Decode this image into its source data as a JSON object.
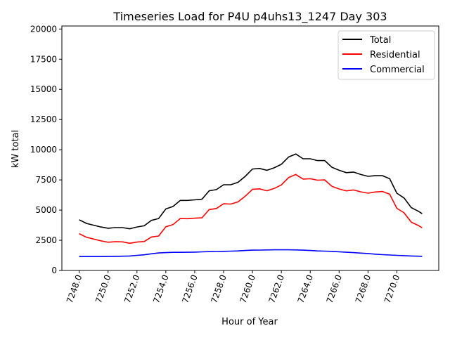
{
  "chart_data": {
    "type": "line",
    "title": "Timeseries Load for P4U p4uhs13_1247  Day 303",
    "xlabel": "Hour of Year",
    "ylabel": "kW total",
    "xlim": [
      7246.8,
      7272.9
    ],
    "ylim": [
      0,
      20250
    ],
    "x_ticks": [
      7248,
      7250,
      7252,
      7254,
      7256,
      7258,
      7260,
      7262,
      7264,
      7266,
      7268,
      7270
    ],
    "x_tick_labels": [
      "7248.0",
      "7250.0",
      "7252.0",
      "7254.0",
      "7256.0",
      "7258.0",
      "7260.0",
      "7262.0",
      "7264.0",
      "7266.0",
      "7268.0",
      "7270.0"
    ],
    "y_ticks": [
      0,
      2500,
      5000,
      7500,
      10000,
      12500,
      15000,
      17500,
      20000
    ],
    "y_tick_labels": [
      "0",
      "2500",
      "5000",
      "7500",
      "10000",
      "12500",
      "15000",
      "17500",
      "20000"
    ],
    "grid": false,
    "legend_position": "top-right",
    "x": [
      7248,
      7248.5,
      7249,
      7249.5,
      7250,
      7250.5,
      7251,
      7251.5,
      7252,
      7252.5,
      7253,
      7253.5,
      7254,
      7254.5,
      7255,
      7255.5,
      7256,
      7256.5,
      7257,
      7257.5,
      7258,
      7258.5,
      7259,
      7259.5,
      7260,
      7260.5,
      7261,
      7261.5,
      7262,
      7262.5,
      7263,
      7263.5,
      7264,
      7264.5,
      7265,
      7265.5,
      7266,
      7266.5,
      7267,
      7267.5,
      7268,
      7268.5,
      7269,
      7269.5,
      7270,
      7270.5,
      7271,
      7271.5,
      7271.75
    ],
    "series": [
      {
        "name": "Total",
        "color": "#000000",
        "values": [
          4200,
          3900,
          3750,
          3600,
          3500,
          3550,
          3550,
          3450,
          3600,
          3700,
          4150,
          4300,
          5100,
          5300,
          5800,
          5800,
          5850,
          5900,
          6600,
          6700,
          7100,
          7100,
          7300,
          7800,
          8400,
          8450,
          8300,
          8500,
          8800,
          9400,
          9650,
          9250,
          9250,
          9100,
          9100,
          8550,
          8300,
          8100,
          8150,
          7950,
          7800,
          7850,
          7850,
          7600,
          6400,
          6000,
          5200,
          4900,
          4700
        ]
      },
      {
        "name": "Residential",
        "color": "#ff0000",
        "values": [
          3050,
          2750,
          2600,
          2450,
          2340,
          2380,
          2370,
          2250,
          2350,
          2400,
          2770,
          2850,
          3620,
          3800,
          4300,
          4290,
          4330,
          4360,
          5040,
          5130,
          5520,
          5500,
          5680,
          6150,
          6720,
          6760,
          6600,
          6790,
          7090,
          7690,
          7950,
          7570,
          7600,
          7480,
          7500,
          6970,
          6750,
          6590,
          6670,
          6510,
          6400,
          6500,
          6540,
          6320,
          5150,
          4770,
          4000,
          3720,
          3530
        ]
      },
      {
        "name": "Commercial",
        "color": "#0000ff",
        "values": [
          1150,
          1150,
          1150,
          1150,
          1160,
          1170,
          1180,
          1200,
          1250,
          1300,
          1380,
          1450,
          1480,
          1500,
          1500,
          1510,
          1520,
          1540,
          1560,
          1570,
          1580,
          1600,
          1620,
          1650,
          1680,
          1690,
          1700,
          1710,
          1710,
          1710,
          1700,
          1680,
          1650,
          1620,
          1600,
          1580,
          1550,
          1510,
          1480,
          1440,
          1400,
          1350,
          1310,
          1280,
          1250,
          1230,
          1200,
          1180,
          1170
        ]
      }
    ]
  }
}
